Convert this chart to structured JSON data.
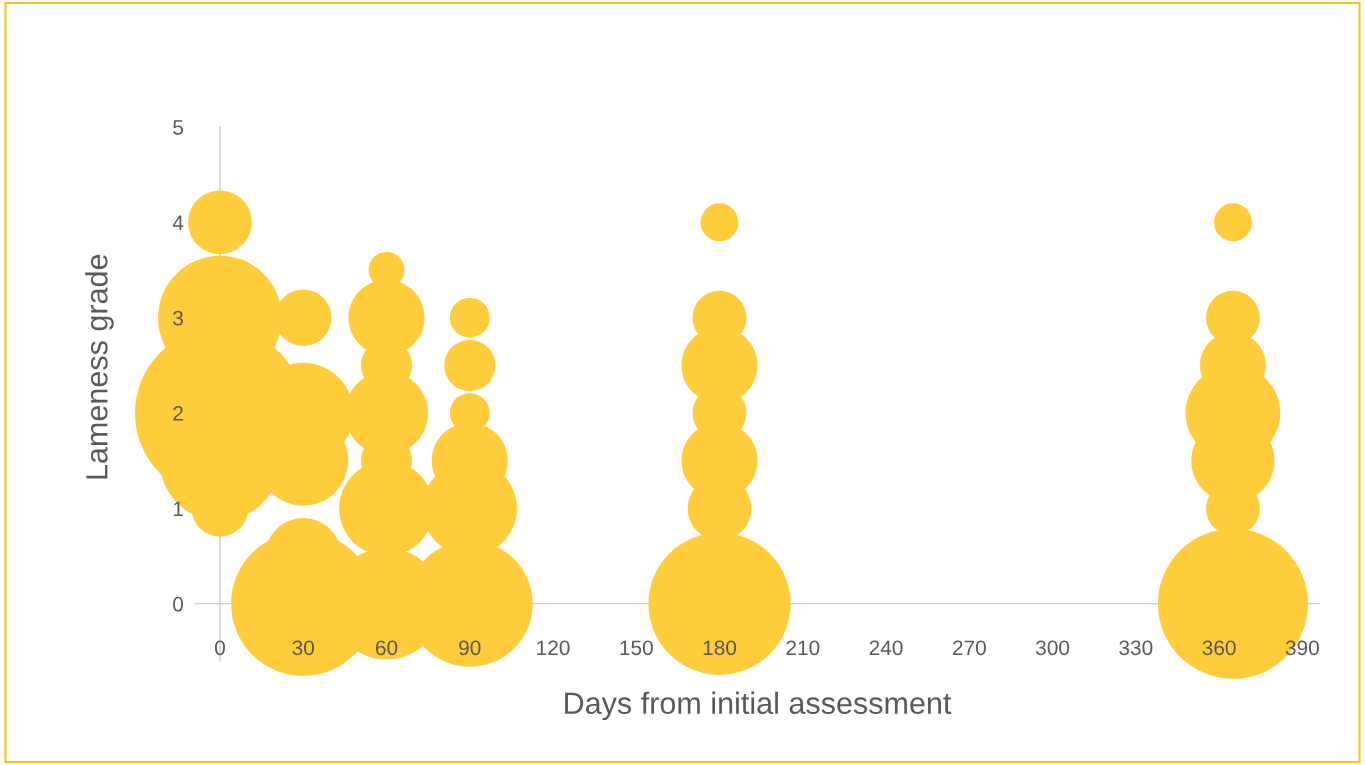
{
  "chart_data": {
    "type": "bubble",
    "xlabel": "Days from initial assessment",
    "ylabel": "Lameness grade",
    "xlim": [
      -9,
      396
    ],
    "ylim": [
      -0.6,
      5
    ],
    "xticks": [
      0,
      30,
      60,
      90,
      120,
      150,
      180,
      210,
      240,
      270,
      300,
      330,
      360,
      390
    ],
    "yticks": [
      0,
      1,
      2,
      3,
      4,
      5
    ],
    "grid": false,
    "legend": false,
    "series": [
      {
        "color": "#ffcd3c",
        "x": [
          0,
          0,
          0,
          0,
          0,
          30,
          30,
          30,
          30,
          30,
          60,
          60,
          60,
          60,
          60,
          60,
          60,
          90,
          90,
          90,
          90,
          90,
          90,
          180,
          180,
          180,
          180,
          180,
          180,
          180,
          365,
          365,
          365,
          365,
          365,
          365,
          365
        ],
        "values": [
          4,
          3,
          2,
          1.5,
          1,
          3,
          2,
          1.5,
          0.5,
          0,
          3.5,
          3,
          2.5,
          2,
          1.5,
          1,
          0,
          3,
          2.5,
          2,
          1.5,
          1,
          0,
          4,
          3,
          2.5,
          2,
          1.5,
          1,
          0,
          4,
          3,
          2.5,
          2,
          1.5,
          1,
          0
        ],
        "sizes": [
          0.14,
          0.53,
          1,
          0.5,
          0.11,
          0.11,
          0.35,
          0.28,
          0.2,
          0.72,
          0.045,
          0.2,
          0.09,
          0.24,
          0.09,
          0.31,
          0.43,
          0.055,
          0.09,
          0.055,
          0.2,
          0.31,
          0.55,
          0.05,
          0.1,
          0.2,
          0.1,
          0.2,
          0.14,
          0.7,
          0.05,
          0.1,
          0.15,
          0.31,
          0.24,
          0.1,
          0.78
        ]
      }
    ]
  }
}
